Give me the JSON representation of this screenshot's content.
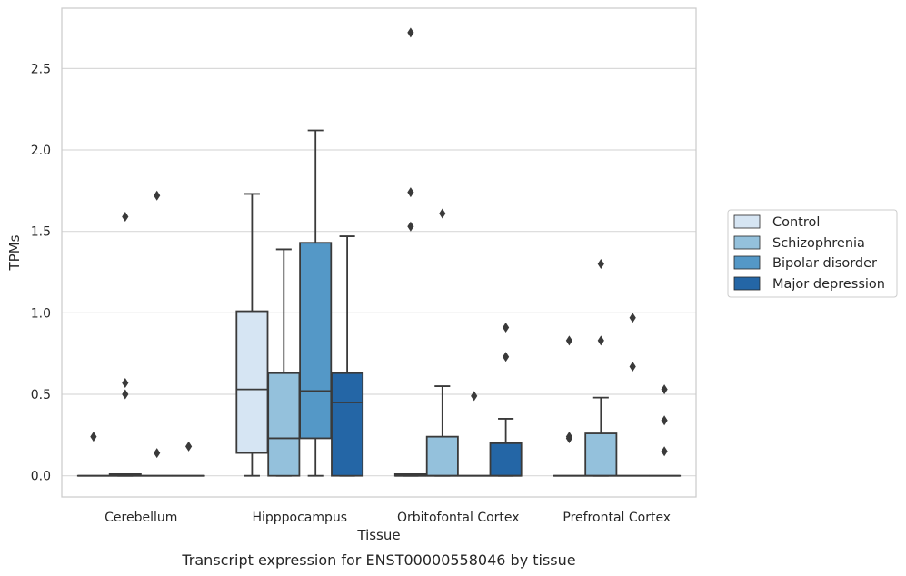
{
  "chart_data": {
    "type": "box",
    "xlabel": "Tissue",
    "ylabel": "TPMs",
    "caption": "Transcript expression for ENST00000558046 by tissue",
    "categories": [
      "Cerebellum",
      "Hipppocampus",
      "Orbitofontal Cortex",
      "Prefrontal Cortex"
    ],
    "ylim": [
      -0.13,
      2.87
    ],
    "yticks": [
      0.0,
      0.5,
      1.0,
      1.5,
      2.0,
      2.5
    ],
    "ytick_labels": [
      "0.0",
      "0.5",
      "1.0",
      "1.5",
      "2.0",
      "2.5"
    ],
    "grid": "horizontal",
    "legend_position": "right",
    "series": [
      {
        "name": "Control",
        "color": "#d6e5f3",
        "boxes": [
          {
            "q1": 0.0,
            "median": 0.0,
            "q3": 0.0,
            "whislo": 0.0,
            "whishi": 0.0,
            "fliers": [
              0.24
            ]
          },
          {
            "q1": 0.14,
            "median": 0.53,
            "q3": 1.01,
            "whislo": 0.0,
            "whishi": 1.73,
            "fliers": []
          },
          {
            "q1": 0.0,
            "median": 0.0,
            "q3": 0.01,
            "whislo": 0.0,
            "whishi": 0.01,
            "fliers": [
              2.72,
              1.74,
              1.53
            ]
          },
          {
            "q1": 0.0,
            "median": 0.0,
            "q3": 0.0,
            "whislo": 0.0,
            "whishi": 0.0,
            "fliers": [
              0.83,
              0.24,
              0.23
            ]
          }
        ]
      },
      {
        "name": "Schizophrenia",
        "color": "#94c1dc",
        "boxes": [
          {
            "q1": 0.0,
            "median": 0.0,
            "q3": 0.01,
            "whislo": 0.0,
            "whishi": 0.01,
            "fliers": [
              1.59,
              0.57,
              0.5
            ]
          },
          {
            "q1": 0.0,
            "median": 0.23,
            "q3": 0.63,
            "whislo": 0.0,
            "whishi": 1.39,
            "fliers": []
          },
          {
            "q1": 0.0,
            "median": 0.0,
            "q3": 0.24,
            "whislo": 0.0,
            "whishi": 0.55,
            "fliers": [
              1.61
            ]
          },
          {
            "q1": 0.0,
            "median": 0.0,
            "q3": 0.26,
            "whislo": 0.0,
            "whishi": 0.48,
            "fliers": [
              1.3,
              0.83
            ]
          }
        ]
      },
      {
        "name": "Bipolar disorder",
        "color": "#5498c7",
        "boxes": [
          {
            "q1": 0.0,
            "median": 0.0,
            "q3": 0.0,
            "whislo": 0.0,
            "whishi": 0.0,
            "fliers": [
              1.72,
              0.14
            ]
          },
          {
            "q1": 0.23,
            "median": 0.52,
            "q3": 1.43,
            "whislo": 0.0,
            "whishi": 2.12,
            "fliers": []
          },
          {
            "q1": 0.0,
            "median": 0.0,
            "q3": 0.0,
            "whislo": 0.0,
            "whishi": 0.0,
            "fliers": [
              0.49
            ]
          },
          {
            "q1": 0.0,
            "median": 0.0,
            "q3": 0.0,
            "whislo": 0.0,
            "whishi": 0.0,
            "fliers": [
              0.97,
              0.67
            ]
          }
        ]
      },
      {
        "name": "Major depression",
        "color": "#2466a6",
        "boxes": [
          {
            "q1": 0.0,
            "median": 0.0,
            "q3": 0.0,
            "whislo": 0.0,
            "whishi": 0.0,
            "fliers": [
              0.18
            ]
          },
          {
            "q1": 0.0,
            "median": 0.45,
            "q3": 0.63,
            "whislo": 0.0,
            "whishi": 1.47,
            "fliers": []
          },
          {
            "q1": 0.0,
            "median": 0.0,
            "q3": 0.2,
            "whislo": 0.0,
            "whishi": 0.35,
            "fliers": [
              0.91,
              0.73
            ]
          },
          {
            "q1": 0.0,
            "median": 0.0,
            "q3": 0.0,
            "whislo": 0.0,
            "whishi": 0.0,
            "fliers": [
              0.53,
              0.34,
              0.15
            ]
          }
        ]
      }
    ]
  }
}
